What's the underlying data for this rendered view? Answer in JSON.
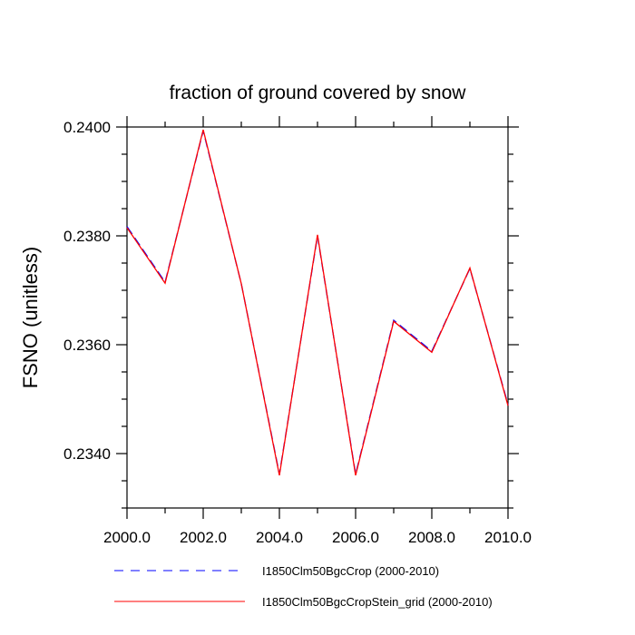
{
  "chart_data": {
    "type": "line",
    "title": "fraction of ground covered by snow",
    "xlabel": "",
    "ylabel": "FSNO  (unitless)",
    "xlim": [
      2000,
      2010
    ],
    "ylim": [
      0.233,
      0.24
    ],
    "x_ticks": [
      "2000.0",
      "2002.0",
      "2004.0",
      "2006.0",
      "2008.0",
      "2010.0"
    ],
    "y_ticks": [
      "0.2340",
      "0.2360",
      "0.2380",
      "0.2400"
    ],
    "x": [
      2000,
      2001,
      2002,
      2003,
      2004,
      2005,
      2006,
      2007,
      2008,
      2009,
      2010
    ],
    "series": [
      {
        "name": "I1850Clm50BgcCrop (2000-2010)",
        "color": "#0000ff",
        "style": "dashed",
        "values": [
          0.23817,
          0.23715,
          0.23993,
          0.23712,
          0.23362,
          0.238,
          0.23362,
          0.23645,
          0.23588,
          0.2374,
          0.2349
        ]
      },
      {
        "name": "I1850Clm50BgcCropStein_grid (2000-2010)",
        "color": "#ff0000",
        "style": "solid",
        "values": [
          0.23815,
          0.23713,
          0.23995,
          0.23712,
          0.2336,
          0.23802,
          0.2336,
          0.23643,
          0.23586,
          0.23741,
          0.23488
        ]
      }
    ],
    "grid": false,
    "legend_placement": "bottom"
  }
}
